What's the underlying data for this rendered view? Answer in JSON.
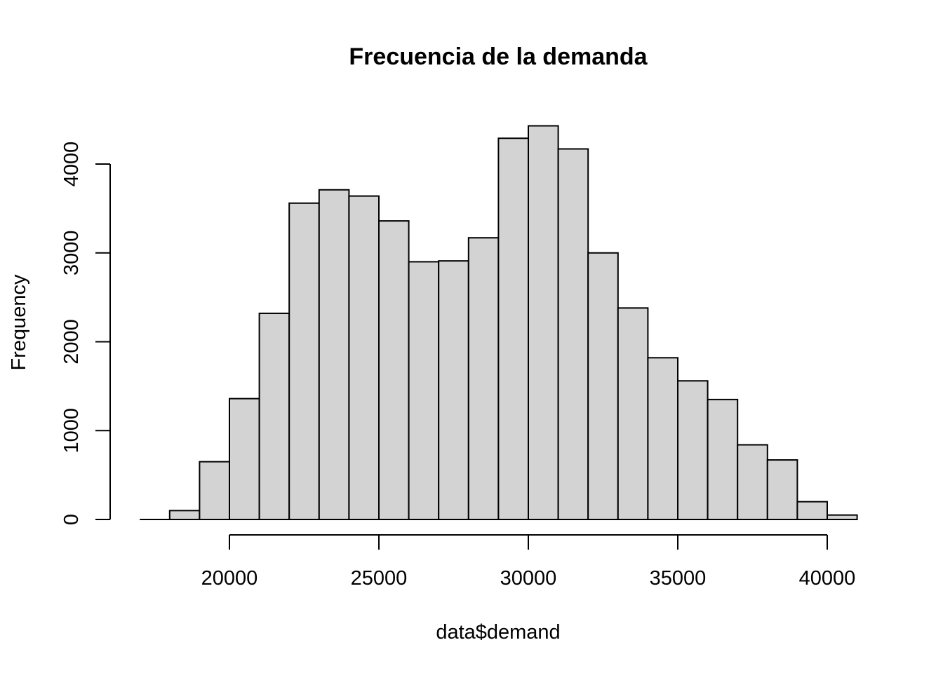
{
  "chart_data": {
    "type": "bar",
    "title": "Frecuencia de la demanda",
    "xlabel": "data$demand",
    "ylabel": "Frequency",
    "bins": [
      {
        "start": 17000,
        "end": 18000,
        "count": 0
      },
      {
        "start": 18000,
        "end": 19000,
        "count": 100
      },
      {
        "start": 19000,
        "end": 20000,
        "count": 650
      },
      {
        "start": 20000,
        "end": 21000,
        "count": 1360
      },
      {
        "start": 21000,
        "end": 22000,
        "count": 2320
      },
      {
        "start": 22000,
        "end": 23000,
        "count": 3560
      },
      {
        "start": 23000,
        "end": 24000,
        "count": 3710
      },
      {
        "start": 24000,
        "end": 25000,
        "count": 3640
      },
      {
        "start": 25000,
        "end": 26000,
        "count": 3360
      },
      {
        "start": 26000,
        "end": 27000,
        "count": 2900
      },
      {
        "start": 27000,
        "end": 28000,
        "count": 2910
      },
      {
        "start": 28000,
        "end": 29000,
        "count": 3170
      },
      {
        "start": 29000,
        "end": 30000,
        "count": 4290
      },
      {
        "start": 30000,
        "end": 31000,
        "count": 4430
      },
      {
        "start": 31000,
        "end": 32000,
        "count": 4170
      },
      {
        "start": 32000,
        "end": 33000,
        "count": 3000
      },
      {
        "start": 33000,
        "end": 34000,
        "count": 2380
      },
      {
        "start": 34000,
        "end": 35000,
        "count": 1820
      },
      {
        "start": 35000,
        "end": 36000,
        "count": 1560
      },
      {
        "start": 36000,
        "end": 37000,
        "count": 1350
      },
      {
        "start": 37000,
        "end": 38000,
        "count": 840
      },
      {
        "start": 38000,
        "end": 39000,
        "count": 670
      },
      {
        "start": 39000,
        "end": 40000,
        "count": 200
      },
      {
        "start": 40000,
        "end": 41000,
        "count": 50
      }
    ],
    "xticks": [
      20000,
      25000,
      30000,
      35000,
      40000
    ],
    "xtick_labels": [
      "20000",
      "25000",
      "30000",
      "35000",
      "40000"
    ],
    "yticks": [
      0,
      1000,
      2000,
      3000,
      4000
    ],
    "ytick_labels": [
      "0",
      "1000",
      "2000",
      "3000",
      "4000"
    ],
    "xlim": [
      17000,
      41000
    ],
    "ylim": [
      0,
      4430
    ],
    "grid": false,
    "legend": "none",
    "bar_color": "#d3d3d3",
    "border_color": "#000000"
  }
}
